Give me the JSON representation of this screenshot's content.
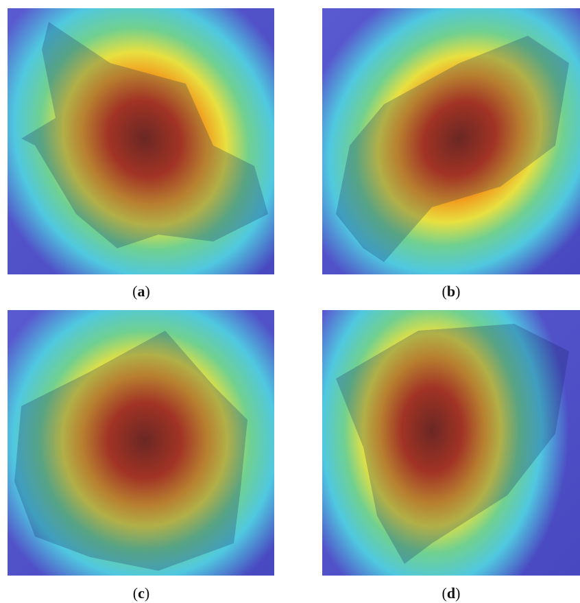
{
  "figure": {
    "panels": [
      {
        "caption": [
          "(",
          "a",
          ")"
        ]
      },
      {
        "caption": [
          "(",
          "b",
          ")"
        ]
      },
      {
        "caption": [
          "(",
          "c",
          ")"
        ]
      },
      {
        "caption": [
          "(",
          "d",
          ")"
        ]
      }
    ]
  }
}
